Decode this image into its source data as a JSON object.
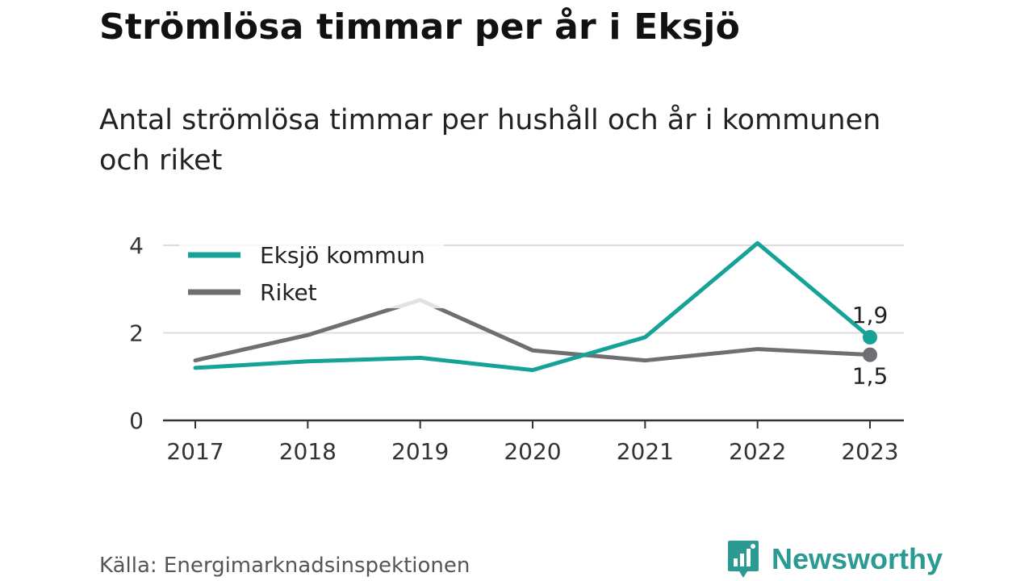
{
  "title": "Strömlösa timmar per år i Eksjö",
  "subtitle": "Antal strömlösa timmar per hushåll och år i kommunen och riket",
  "source": "Källa: Energimarknadsinspektionen",
  "brand": {
    "name": "Newsworthy",
    "icon": "newsworthy-logo-icon",
    "color": "#2b9a93"
  },
  "chart_data": {
    "type": "line",
    "x": [
      "2017",
      "2018",
      "2019",
      "2020",
      "2021",
      "2022",
      "2023"
    ],
    "ylim": [
      0,
      4
    ],
    "yticks": [
      0,
      2,
      4
    ],
    "grid": true,
    "legend_position": "top-left",
    "series": [
      {
        "name": "Eksjö kommun",
        "color": "#16a297",
        "values": [
          1.2,
          1.35,
          1.43,
          1.15,
          1.9,
          4.05,
          1.9
        ],
        "end_label": "1,9"
      },
      {
        "name": "Riket",
        "color": "#6e6e73",
        "values": [
          1.37,
          1.95,
          2.75,
          1.6,
          1.37,
          1.63,
          1.5
        ],
        "end_label": "1,5"
      }
    ]
  }
}
